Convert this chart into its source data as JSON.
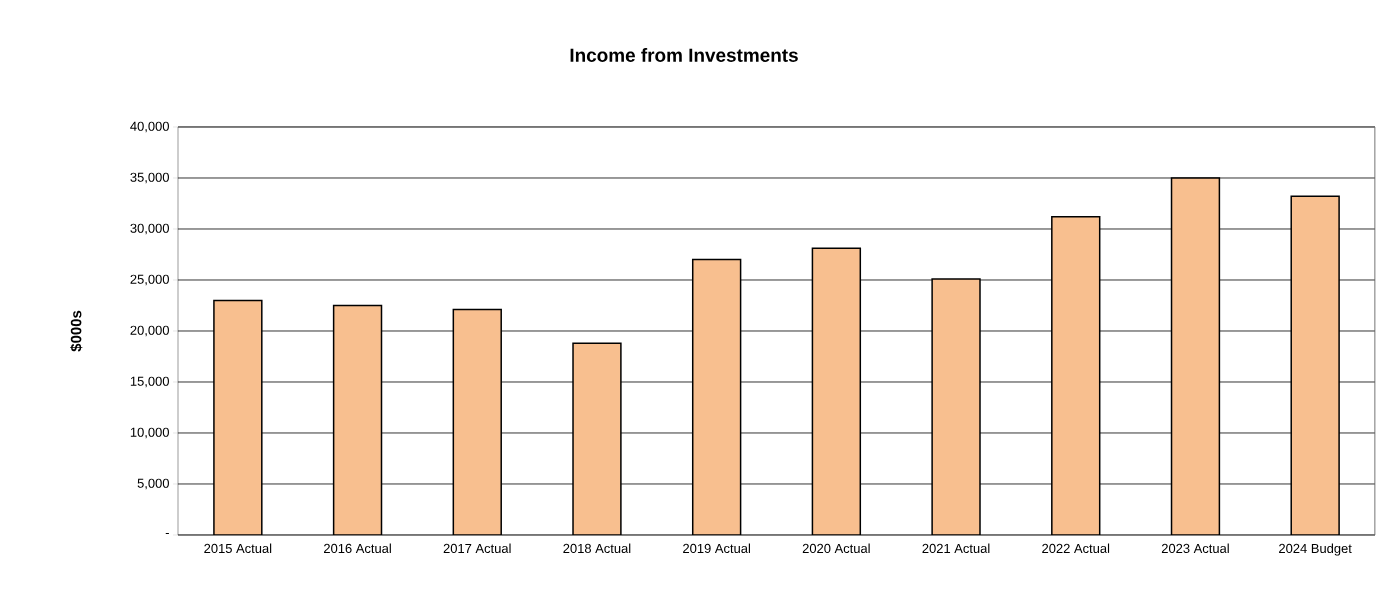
{
  "chart_data": {
    "type": "bar",
    "title": "Income from Investments",
    "ylabel": "$000s",
    "categories": [
      "2015 Actual",
      "2016 Actual",
      "2017 Actual",
      "2018 Actual",
      "2019 Actual",
      "2020 Actual",
      "2021 Actual",
      "2022 Actual",
      "2023 Actual",
      "2024 Budget"
    ],
    "values": [
      23000,
      22500,
      22100,
      18800,
      27000,
      28100,
      25100,
      31200,
      35000,
      33200
    ],
    "color": "#f8bf8f",
    "ylim": [
      0,
      40000
    ],
    "yticks": [
      {
        "value": 0,
        "label": "-"
      },
      {
        "value": 5000,
        "label": "5,000"
      },
      {
        "value": 10000,
        "label": "10,000"
      },
      {
        "value": 15000,
        "label": "15,000"
      },
      {
        "value": 20000,
        "label": "20,000"
      },
      {
        "value": 25000,
        "label": "25,000"
      },
      {
        "value": 30000,
        "label": "30,000"
      },
      {
        "value": 35000,
        "label": "35,000"
      },
      {
        "value": 40000,
        "label": "40,000"
      }
    ],
    "grid": "y"
  }
}
